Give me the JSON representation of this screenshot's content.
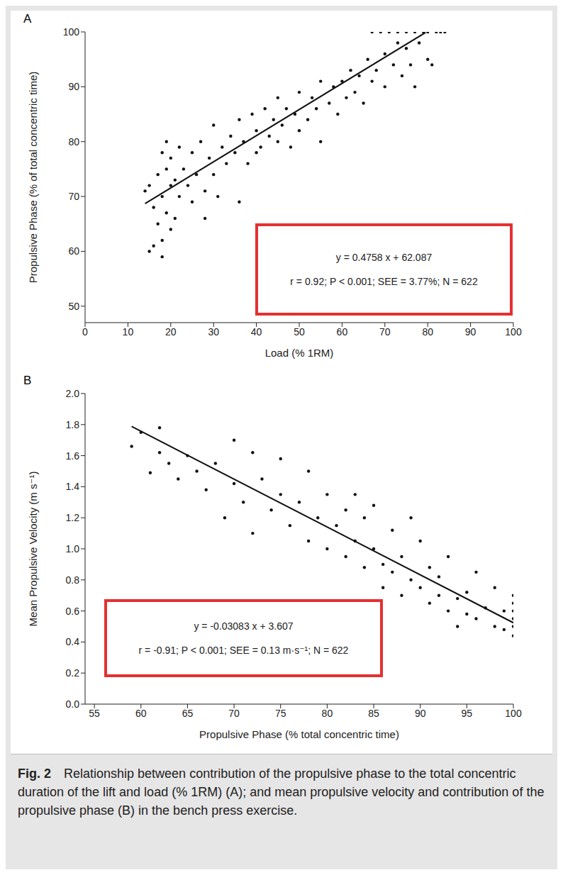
{
  "chart_data": [
    {
      "type": "scatter",
      "title": "A",
      "x_label": "Load (% 1RM)",
      "y_label": "Propulsive Phase (% of total concentric time)",
      "annotations": [
        "y = 0.4758 x + 62.087",
        "r = 0.92; P < 0.001; SEE = 3.77%; N = 622"
      ],
      "annotation_color": "#e53030",
      "xlim": [
        0,
        100
      ],
      "ylim": [
        47,
        100
      ],
      "xticks": [
        0,
        10,
        20,
        30,
        40,
        50,
        60,
        70,
        80,
        90,
        100
      ],
      "yticks": [
        50,
        60,
        70,
        80,
        90,
        100
      ],
      "grid": false,
      "series": [
        {
          "type": "scatter",
          "color": "#111111",
          "marker": "circle",
          "x": [
            14,
            15,
            15,
            16,
            16,
            17,
            17,
            18,
            18,
            18,
            18,
            19,
            19,
            19,
            20,
            20,
            20,
            21,
            21,
            22,
            22,
            23,
            24,
            25,
            25,
            26,
            27,
            28,
            28,
            29,
            30,
            30,
            31,
            32,
            33,
            34,
            35,
            36,
            36,
            37,
            38,
            39,
            40,
            40,
            41,
            42,
            43,
            44,
            45,
            45,
            46,
            47,
            48,
            49,
            50,
            50,
            52,
            53,
            54,
            55,
            55,
            57,
            58,
            59,
            60,
            61,
            62,
            63,
            64,
            65,
            66,
            67,
            67,
            68,
            69,
            70,
            70,
            71,
            72,
            73,
            73,
            74,
            75,
            75,
            76,
            77,
            77,
            78,
            79,
            80,
            80,
            81,
            82,
            83,
            84
          ],
          "values": [
            71,
            72,
            60,
            61,
            68,
            74,
            65,
            62,
            59,
            70,
            78,
            80,
            67,
            75,
            64,
            72,
            77,
            66,
            73,
            70,
            79,
            75,
            72,
            78,
            69,
            74,
            80,
            71,
            66,
            77,
            74,
            83,
            70,
            79,
            76,
            81,
            78,
            69,
            84,
            80,
            76,
            85,
            82,
            78,
            79,
            86,
            81,
            84,
            80,
            88,
            83,
            86,
            79,
            85,
            89,
            82,
            84,
            88,
            86,
            91,
            80,
            87,
            90,
            85,
            91,
            88,
            93,
            89,
            92,
            87,
            95,
            91,
            100,
            93,
            100,
            96,
            90,
            100,
            94,
            98,
            100,
            92,
            100,
            97,
            94,
            100,
            90,
            98,
            100,
            95,
            100,
            94,
            100,
            100,
            100
          ]
        },
        {
          "type": "line",
          "color": "#111111",
          "line_style": "solid",
          "x": [
            14,
            79.5
          ],
          "values": [
            68.7,
            99.9
          ]
        }
      ]
    },
    {
      "type": "scatter",
      "title": "B",
      "x_label": "Propulsive Phase (% total concentric time)",
      "y_label": "Mean Propulsive Velocity (m s⁻¹)",
      "annotations": [
        "y = -0.03083 x + 3.607",
        "r = -0.91; P < 0.001; SEE = 0.13 m·s⁻¹; N = 622"
      ],
      "annotation_color": "#e53030",
      "xlim": [
        54,
        100
      ],
      "ylim": [
        0,
        2
      ],
      "xticks": [
        55,
        60,
        65,
        70,
        75,
        80,
        85,
        90,
        95,
        100
      ],
      "yticks": [
        {
          "value": 0,
          "label": "0.0"
        },
        0.2,
        0.4,
        0.6,
        0.8,
        {
          "value": 1,
          "label": "1.0"
        },
        1.2,
        1.4,
        1.6,
        1.8,
        {
          "value": 2,
          "label": "2.0"
        }
      ],
      "grid": false,
      "series": [
        {
          "type": "scatter",
          "color": "#111111",
          "marker": "circle",
          "x": [
            59,
            60,
            61,
            62,
            62,
            63,
            64,
            65,
            66,
            67,
            68,
            69,
            70,
            70,
            71,
            72,
            72,
            73,
            74,
            75,
            75,
            76,
            77,
            78,
            78,
            79,
            80,
            80,
            81,
            82,
            82,
            83,
            83,
            84,
            84,
            85,
            85,
            86,
            86,
            87,
            87,
            88,
            88,
            89,
            89,
            90,
            90,
            91,
            91,
            92,
            92,
            93,
            93,
            94,
            94,
            95,
            95,
            96,
            96,
            97,
            98,
            98,
            99,
            100,
            100,
            100,
            100,
            100,
            100,
            99
          ],
          "values": [
            1.66,
            1.75,
            1.49,
            1.62,
            1.78,
            1.55,
            1.45,
            1.6,
            1.5,
            1.38,
            1.55,
            1.2,
            1.42,
            1.7,
            1.3,
            1.62,
            1.1,
            1.45,
            1.25,
            1.58,
            1.35,
            1.15,
            1.3,
            1.5,
            1.05,
            1.2,
            1.35,
            1.0,
            1.15,
            1.25,
            0.95,
            1.35,
            1.05,
            0.88,
            1.2,
            1.0,
            1.28,
            0.9,
            0.75,
            1.12,
            0.85,
            0.95,
            0.7,
            1.2,
            0.8,
            0.75,
            1.05,
            0.88,
            0.65,
            0.7,
            0.82,
            0.6,
            0.95,
            0.68,
            0.5,
            0.72,
            0.58,
            0.85,
            0.55,
            0.62,
            0.75,
            0.5,
            0.6,
            0.44,
            0.5,
            0.55,
            0.6,
            0.65,
            0.7,
            0.48
          ]
        },
        {
          "type": "line",
          "color": "#111111",
          "line_style": "solid",
          "x": [
            59,
            100
          ],
          "values": [
            1.788,
            0.524
          ]
        }
      ]
    }
  ],
  "caption": {
    "label": "Fig. 2",
    "text": "Relationship between contribution of the propulsive phase to the total concentric duration of the lift and load (% 1RM) (A); and mean propulsive velocity and contribution of the propulsive phase (B) in the bench press exercise."
  }
}
